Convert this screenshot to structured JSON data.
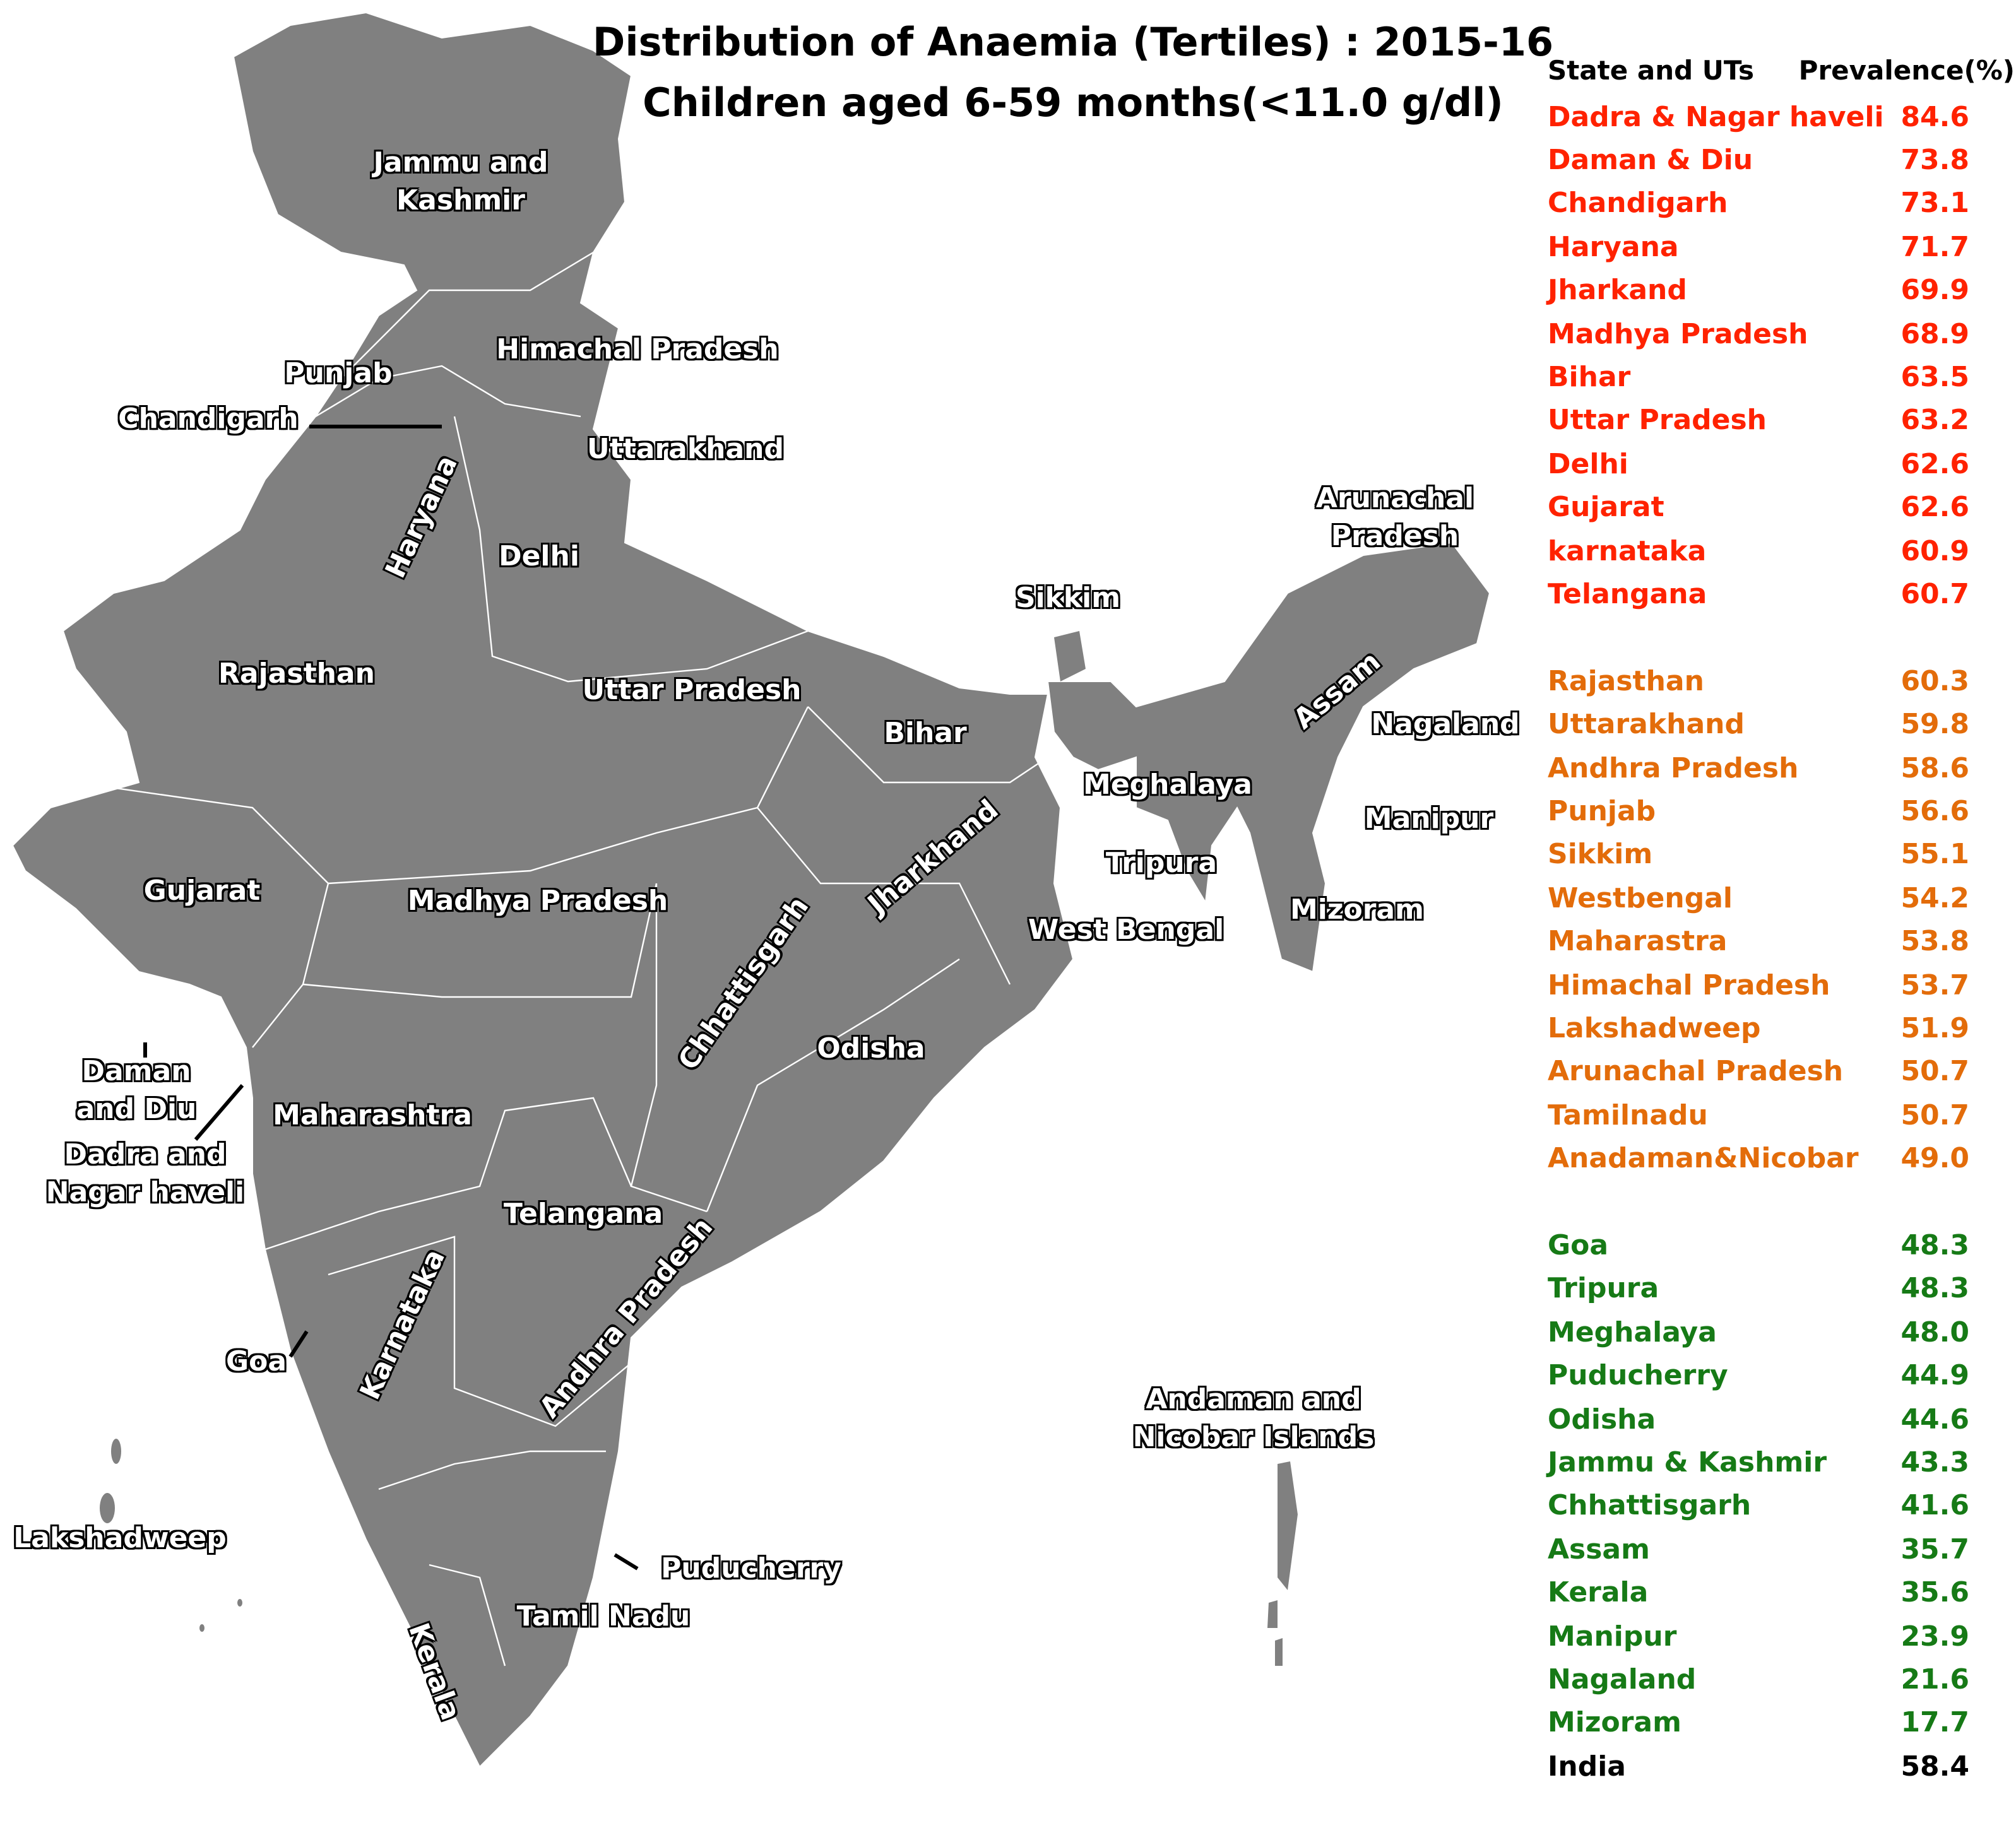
{
  "title": {
    "line1": "Distribution of Anaemia (Tertiles) : 2015-16",
    "line2": "Children aged 6-59 months(<11.0 g/dl)"
  },
  "colors": {
    "high": "#ff2200",
    "medium": "#e36c0a",
    "low": "#167a16",
    "india": "#000000",
    "map_fill": "#808080",
    "border": "#ffffff"
  },
  "legend": {
    "header_state": "State and UTs",
    "header_value": "Prevalence(%)",
    "groups": [
      {
        "tertile": "high",
        "rows": [
          {
            "name": "Dadra & Nagar haveli",
            "value": "84.6"
          },
          {
            "name": "Daman & Diu",
            "value": "73.8"
          },
          {
            "name": "Chandigarh",
            "value": "73.1"
          },
          {
            "name": "Haryana",
            "value": "71.7"
          },
          {
            "name": "Jharkand",
            "value": "69.9"
          },
          {
            "name": "Madhya Pradesh",
            "value": "68.9"
          },
          {
            "name": "Bihar",
            "value": "63.5"
          },
          {
            "name": "Uttar Pradesh",
            "value": "63.2"
          },
          {
            "name": "Delhi",
            "value": "62.6"
          },
          {
            "name": "Gujarat",
            "value": "62.6"
          },
          {
            "name": "karnataka",
            "value": "60.9"
          },
          {
            "name": "Telangana",
            "value": "60.7"
          }
        ]
      },
      {
        "tertile": "medium",
        "rows": [
          {
            "name": "Rajasthan",
            "value": "60.3"
          },
          {
            "name": "Uttarakhand",
            "value": "59.8"
          },
          {
            "name": "Andhra Pradesh",
            "value": "58.6"
          },
          {
            "name": "Punjab",
            "value": "56.6"
          },
          {
            "name": "Sikkim",
            "value": "55.1"
          },
          {
            "name": "Westbengal",
            "value": "54.2"
          },
          {
            "name": "Maharastra",
            "value": "53.8"
          },
          {
            "name": "Himachal Pradesh",
            "value": "53.7"
          },
          {
            "name": "Lakshadweep",
            "value": "51.9"
          },
          {
            "name": "Arunachal Pradesh",
            "value": "50.7"
          },
          {
            "name": "Tamilnadu",
            "value": "50.7"
          },
          {
            "name": "Anadaman&Nicobar",
            "value": "49.0"
          }
        ]
      },
      {
        "tertile": "low",
        "rows": [
          {
            "name": "Goa",
            "value": "48.3"
          },
          {
            "name": "Tripura",
            "value": "48.3"
          },
          {
            "name": "Meghalaya",
            "value": "48.0"
          },
          {
            "name": "Puducherry",
            "value": "44.9"
          },
          {
            "name": "Odisha",
            "value": "44.6"
          },
          {
            "name": "Jammu & Kashmir",
            "value": "43.3"
          },
          {
            "name": "Chhattisgarh",
            "value": "41.6"
          },
          {
            "name": "Assam",
            "value": "35.7"
          },
          {
            "name": "Kerala",
            "value": "35.6"
          },
          {
            "name": "Manipur",
            "value": "23.9"
          },
          {
            "name": "Nagaland",
            "value": "21.6"
          },
          {
            "name": "Mizoram",
            "value": "17.7"
          }
        ]
      }
    ],
    "total": {
      "name": "India",
      "value": "58.4"
    }
  },
  "map_labels": {
    "jk1": "Jammu and",
    "jk2": "Kashmir",
    "hp": "Himachal Pradesh",
    "punjab": "Punjab",
    "chandigarh": "Chandigarh",
    "uttarakhand": "Uttarakhand",
    "haryana": "Haryana",
    "delhi": "Delhi",
    "sikkim": "Sikkim",
    "ar1": "Arunachal",
    "ar2": "Pradesh",
    "rajasthan": "Rajasthan",
    "up": "Uttar Pradesh",
    "bihar": "Bihar",
    "assam": "Assam",
    "nagaland": "Nagaland",
    "meghalaya": "Meghalaya",
    "manipur": "Manipur",
    "jharkhand": "Jharkhand",
    "tripura": "Tripura",
    "gujarat": "Gujarat",
    "mp": "Madhya Pradesh",
    "mizoram": "Mizoram",
    "wb": "West Bengal",
    "chhattisgarh": "Chhattisgarh",
    "odisha": "Odisha",
    "dd1": "Daman",
    "dd2": "and Diu",
    "maharashtra": "Maharashtra",
    "dnh1": "Dadra and",
    "dnh2": "Nagar haveli",
    "telangana": "Telangana",
    "karnataka": "Karnataka",
    "ap": "Andhra Pradesh",
    "goa": "Goa",
    "an1": "Andaman and",
    "an2": "Nicobar Islands",
    "lakshadweep": "Lakshadweep",
    "puducherry": "Puducherry",
    "tn": "Tamil Nadu",
    "kerala": "Kerala"
  }
}
